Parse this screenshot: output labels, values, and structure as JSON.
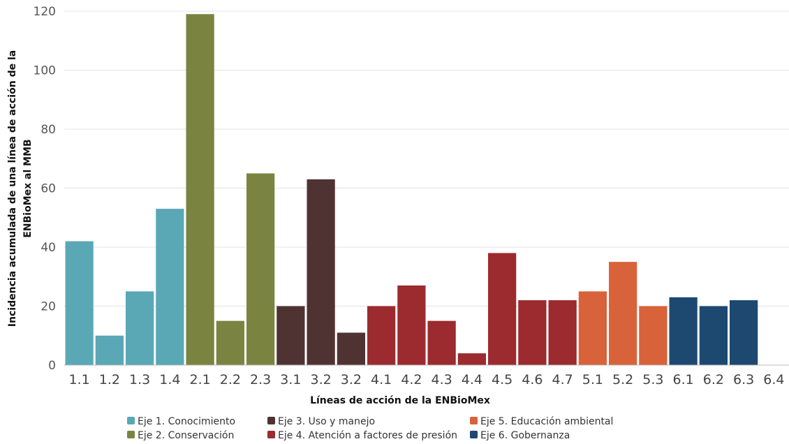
{
  "chart_data": {
    "type": "bar",
    "title": "",
    "xlabel": "Líneas de acción de la ENBioMex",
    "ylabel_lines": [
      "Incidencia acumulada de una línea de acción de la",
      "ENBioMex al MMB"
    ],
    "ylim": [
      0,
      120
    ],
    "yticks": [
      0,
      20,
      40,
      60,
      80,
      100,
      120
    ],
    "grid": true,
    "legend_position": "bottom",
    "categories": [
      "1.1",
      "1.2",
      "1.3",
      "1.4",
      "2.1",
      "2.2",
      "2.3",
      "3.1",
      "3.2",
      "3.2",
      "4.1",
      "4.2",
      "4.3",
      "4.4",
      "4.5",
      "4.6",
      "4.7",
      "5.1",
      "5.2",
      "5.3",
      "6.1",
      "6.2",
      "6.3",
      "6.4"
    ],
    "values": [
      42,
      10,
      25,
      53,
      119,
      15,
      65,
      20,
      63,
      11,
      20,
      27,
      15,
      4,
      38,
      22,
      22,
      25,
      35,
      20,
      23,
      20,
      22,
      0
    ],
    "groups": [
      0,
      0,
      0,
      0,
      1,
      1,
      1,
      2,
      2,
      2,
      3,
      3,
      3,
      3,
      3,
      3,
      3,
      4,
      4,
      4,
      5,
      5,
      5,
      5
    ],
    "series": [
      {
        "name": "Eje 1. Conocimiento",
        "color": "#5aa8b6"
      },
      {
        "name": "Eje 2. Conservación",
        "color": "#7a8440"
      },
      {
        "name": "Eje 3. Uso y manejo",
        "color": "#4f3333"
      },
      {
        "name": "Eje 4. Atención a factores de presión",
        "color": "#9b2b2f"
      },
      {
        "name": "Eje 5. Educación ambiental",
        "color": "#d8633a"
      },
      {
        "name": "Eje 6. Gobernanza",
        "color": "#1d4870"
      }
    ]
  }
}
